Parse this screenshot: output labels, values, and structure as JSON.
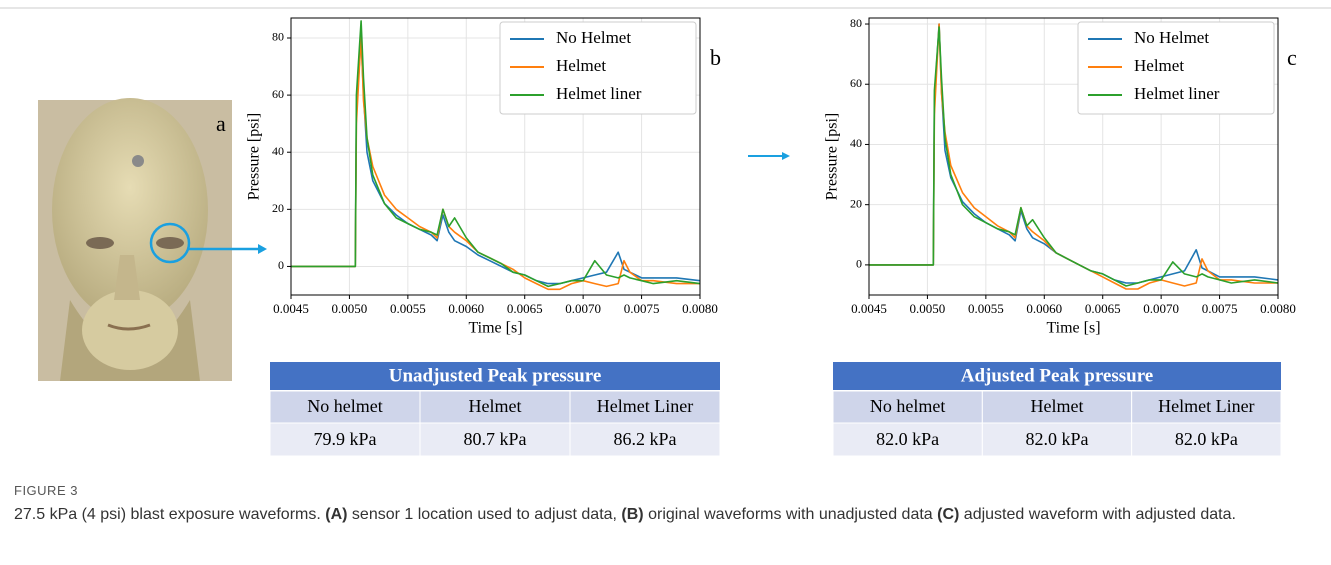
{
  "panels": {
    "a": "a",
    "b": "b",
    "c": "c"
  },
  "chart_data": [
    {
      "type": "line",
      "xlabel": "Time [s]",
      "ylabel": "Pressure [psi]",
      "x": [
        0.0045,
        0.0048,
        0.00505,
        0.00506,
        0.0051,
        0.00512,
        0.00515,
        0.0052,
        0.0053,
        0.0054,
        0.0055,
        0.0056,
        0.0057,
        0.00575,
        0.0058,
        0.00585,
        0.0059,
        0.006,
        0.0061,
        0.0062,
        0.0063,
        0.0064,
        0.0065,
        0.0066,
        0.0067,
        0.0068,
        0.0069,
        0.007,
        0.0071,
        0.0072,
        0.0073,
        0.00735,
        0.0074,
        0.0075,
        0.0076,
        0.0078,
        0.008
      ],
      "xlim": [
        0.0045,
        0.008
      ],
      "xticks": [
        0.0045,
        {
          "value": 0.005,
          "label": "0.0050"
        },
        0.0055,
        {
          "value": 0.006,
          "label": "0.0060"
        },
        0.0065,
        {
          "value": 0.007,
          "label": "0.0070"
        },
        0.0075,
        {
          "value": 0.008,
          "label": "0.0080"
        }
      ],
      "ylim": [
        -10,
        87
      ],
      "yticks": [
        0,
        20,
        40,
        60,
        80
      ],
      "grid": true,
      "legend": "upper right",
      "series": [
        {
          "name": "No Helmet",
          "color": "#1f77b4",
          "values": [
            0,
            0,
            0,
            55,
            80,
            60,
            40,
            30,
            22,
            18,
            15,
            13,
            11,
            9,
            18,
            12,
            9,
            7,
            4,
            2,
            0,
            -2,
            -3,
            -5,
            -6,
            -6,
            -5,
            -4,
            -3,
            -2,
            5,
            -1,
            -2,
            -4,
            -4,
            -4,
            -5
          ]
        },
        {
          "name": "Helmet",
          "color": "#ff7f0e",
          "values": [
            0,
            0,
            0,
            50,
            81,
            58,
            45,
            35,
            25,
            20,
            17,
            14,
            12,
            10,
            20,
            14,
            12,
            9,
            5,
            3,
            1,
            -1,
            -4,
            -6,
            -8,
            -8,
            -6,
            -5,
            -6,
            -7,
            -6,
            2,
            -2,
            -5,
            -5,
            -6,
            -6
          ]
        },
        {
          "name": "Helmet liner",
          "color": "#2ca02c",
          "values": [
            0,
            0,
            0,
            60,
            86,
            66,
            45,
            32,
            22,
            17,
            15,
            13,
            12,
            11,
            20,
            14,
            17,
            10,
            5,
            3,
            1,
            -2,
            -3,
            -5,
            -7,
            -6,
            -5,
            -5,
            2,
            -3,
            -4,
            -3,
            -4,
            -5,
            -6,
            -5,
            -6
          ]
        }
      ]
    },
    {
      "type": "line",
      "xlabel": "Time [s]",
      "ylabel": "Pressure [psi]",
      "x": [
        0.0045,
        0.0048,
        0.00505,
        0.00506,
        0.0051,
        0.00512,
        0.00515,
        0.0052,
        0.0053,
        0.0054,
        0.0055,
        0.0056,
        0.0057,
        0.00575,
        0.0058,
        0.00585,
        0.0059,
        0.006,
        0.0061,
        0.0062,
        0.0063,
        0.0064,
        0.0065,
        0.0066,
        0.0067,
        0.0068,
        0.0069,
        0.007,
        0.0071,
        0.0072,
        0.0073,
        0.00735,
        0.0074,
        0.0075,
        0.0076,
        0.0078,
        0.008
      ],
      "xlim": [
        0.0045,
        0.008
      ],
      "xticks": [
        0.0045,
        {
          "value": 0.005,
          "label": "0.0050"
        },
        0.0055,
        {
          "value": 0.006,
          "label": "0.0060"
        },
        0.0065,
        {
          "value": 0.007,
          "label": "0.0070"
        },
        0.0075,
        {
          "value": 0.008,
          "label": "0.0080"
        }
      ],
      "ylim": [
        -10,
        82
      ],
      "yticks": [
        0,
        20,
        40,
        60,
        80
      ],
      "grid": true,
      "legend": "upper right",
      "series": [
        {
          "name": "No Helmet",
          "color": "#1f77b4",
          "values": [
            0,
            0,
            0,
            55,
            80,
            58,
            38,
            29,
            21,
            17,
            14,
            12,
            10,
            8,
            18,
            12,
            9,
            7,
            4,
            2,
            0,
            -2,
            -3,
            -5,
            -6,
            -6,
            -5,
            -4,
            -3,
            -2,
            5,
            -1,
            -2,
            -4,
            -4,
            -4,
            -5
          ]
        },
        {
          "name": "Helmet",
          "color": "#ff7f0e",
          "values": [
            0,
            0,
            0,
            50,
            80,
            57,
            44,
            33,
            24,
            19,
            16,
            13,
            11,
            9,
            19,
            13,
            11,
            8,
            4,
            2,
            0,
            -2,
            -4,
            -6,
            -8,
            -8,
            -6,
            -5,
            -6,
            -7,
            -6,
            2,
            -2,
            -5,
            -5,
            -6,
            -6
          ]
        },
        {
          "name": "Helmet liner",
          "color": "#2ca02c",
          "values": [
            0,
            0,
            0,
            58,
            79,
            62,
            42,
            30,
            20,
            16,
            14,
            12,
            11,
            10,
            19,
            13,
            15,
            9,
            4,
            2,
            0,
            -2,
            -3,
            -5,
            -7,
            -6,
            -5,
            -5,
            1,
            -3,
            -4,
            -3,
            -4,
            -5,
            -6,
            -5,
            -6
          ]
        }
      ]
    }
  ],
  "tables": [
    {
      "title": "Unadjusted Peak pressure",
      "header": [
        "No helmet",
        "Helmet",
        "Helmet Liner"
      ],
      "row": [
        "79.9 kPa",
        "80.7 kPa",
        "86.2 kPa"
      ]
    },
    {
      "title": "Adjusted Peak pressure",
      "header": [
        "No helmet",
        "Helmet",
        "Helmet Liner"
      ],
      "row": [
        "82.0 kPa",
        "82.0 kPa",
        "82.0 kPa"
      ]
    }
  ],
  "caption": {
    "label": "FIGURE 3",
    "segments": [
      "27.5 kPa (4 psi) blast exposure waveforms. ",
      "(A)",
      " sensor 1 location used to adjust data, ",
      "(B)",
      " original waveforms with unadjusted data ",
      "(C)",
      " adjusted waveform with adjusted data."
    ]
  }
}
